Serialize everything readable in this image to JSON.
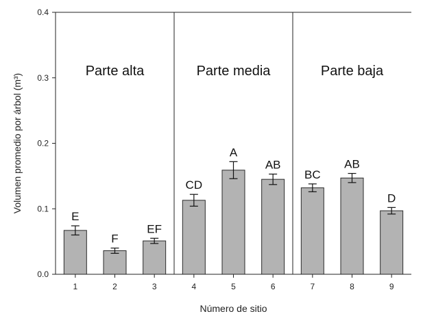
{
  "chart_data": {
    "type": "bar",
    "categories": [
      "1",
      "2",
      "3",
      "4",
      "5",
      "6",
      "7",
      "8",
      "9"
    ],
    "values": [
      0.067,
      0.036,
      0.051,
      0.113,
      0.159,
      0.145,
      0.132,
      0.147,
      0.097
    ],
    "errors": [
      0.007,
      0.004,
      0.004,
      0.009,
      0.013,
      0.008,
      0.006,
      0.007,
      0.005
    ],
    "significance_letters": [
      "E",
      "F",
      "EF",
      "CD",
      "A",
      "AB",
      "BC",
      "AB",
      "D"
    ],
    "xlabel": "Número de sitio",
    "ylabel": "Volumen promedio por árbol (m³)",
    "ylim": [
      0,
      0.4
    ],
    "yticks": [
      "0.0",
      "0.1",
      "0.2",
      "0.3",
      "0.4"
    ],
    "regions": [
      {
        "label": "Parte alta",
        "categories": [
          "1",
          "2",
          "3"
        ]
      },
      {
        "label": "Parte media",
        "categories": [
          "4",
          "5",
          "6"
        ]
      },
      {
        "label": "Parte baja",
        "categories": [
          "7",
          "8",
          "9"
        ]
      }
    ],
    "grid": false,
    "colors": {
      "bar_fill": "#b3b3b3",
      "bar_stroke": "#2a2a2a",
      "axis": "#222222"
    }
  }
}
